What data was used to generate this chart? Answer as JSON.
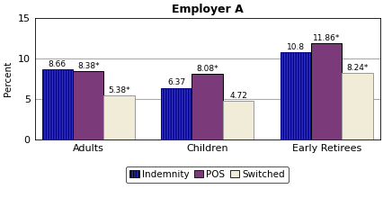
{
  "title": "Employer A",
  "ylabel": "Percent",
  "groups": [
    "Adults",
    "Children",
    "Early Retirees"
  ],
  "series": [
    "Indemnity",
    "POS",
    "Switched"
  ],
  "values": [
    [
      8.66,
      8.38,
      5.38
    ],
    [
      6.37,
      8.08,
      4.72
    ],
    [
      10.8,
      11.86,
      8.24
    ]
  ],
  "labels": [
    [
      "8.66",
      "8.38*",
      "5.38*"
    ],
    [
      "6.37",
      "8.08*",
      "4.72"
    ],
    [
      "10.8",
      "11.86*",
      "8.24*"
    ]
  ],
  "colors": [
    "#3333CC",
    "#7B3B7B",
    "#F0ECD8"
  ],
  "hatch_patterns": [
    "||||||",
    "",
    ""
  ],
  "edgecolors": [
    "#000080",
    "#000000",
    "#999999"
  ],
  "ylim": [
    0,
    15
  ],
  "yticks": [
    0,
    5,
    10,
    15
  ],
  "bar_width": 0.26,
  "legend_fontsize": 7.5,
  "title_fontsize": 9,
  "label_fontsize": 6.5,
  "axis_fontsize": 7.5,
  "tick_fontsize": 8,
  "background_color": "#FFFFFF",
  "plot_bg_color": "#FFFFFF",
  "grid_color": "#AAAAAA",
  "grid_lines": [
    5,
    10
  ]
}
